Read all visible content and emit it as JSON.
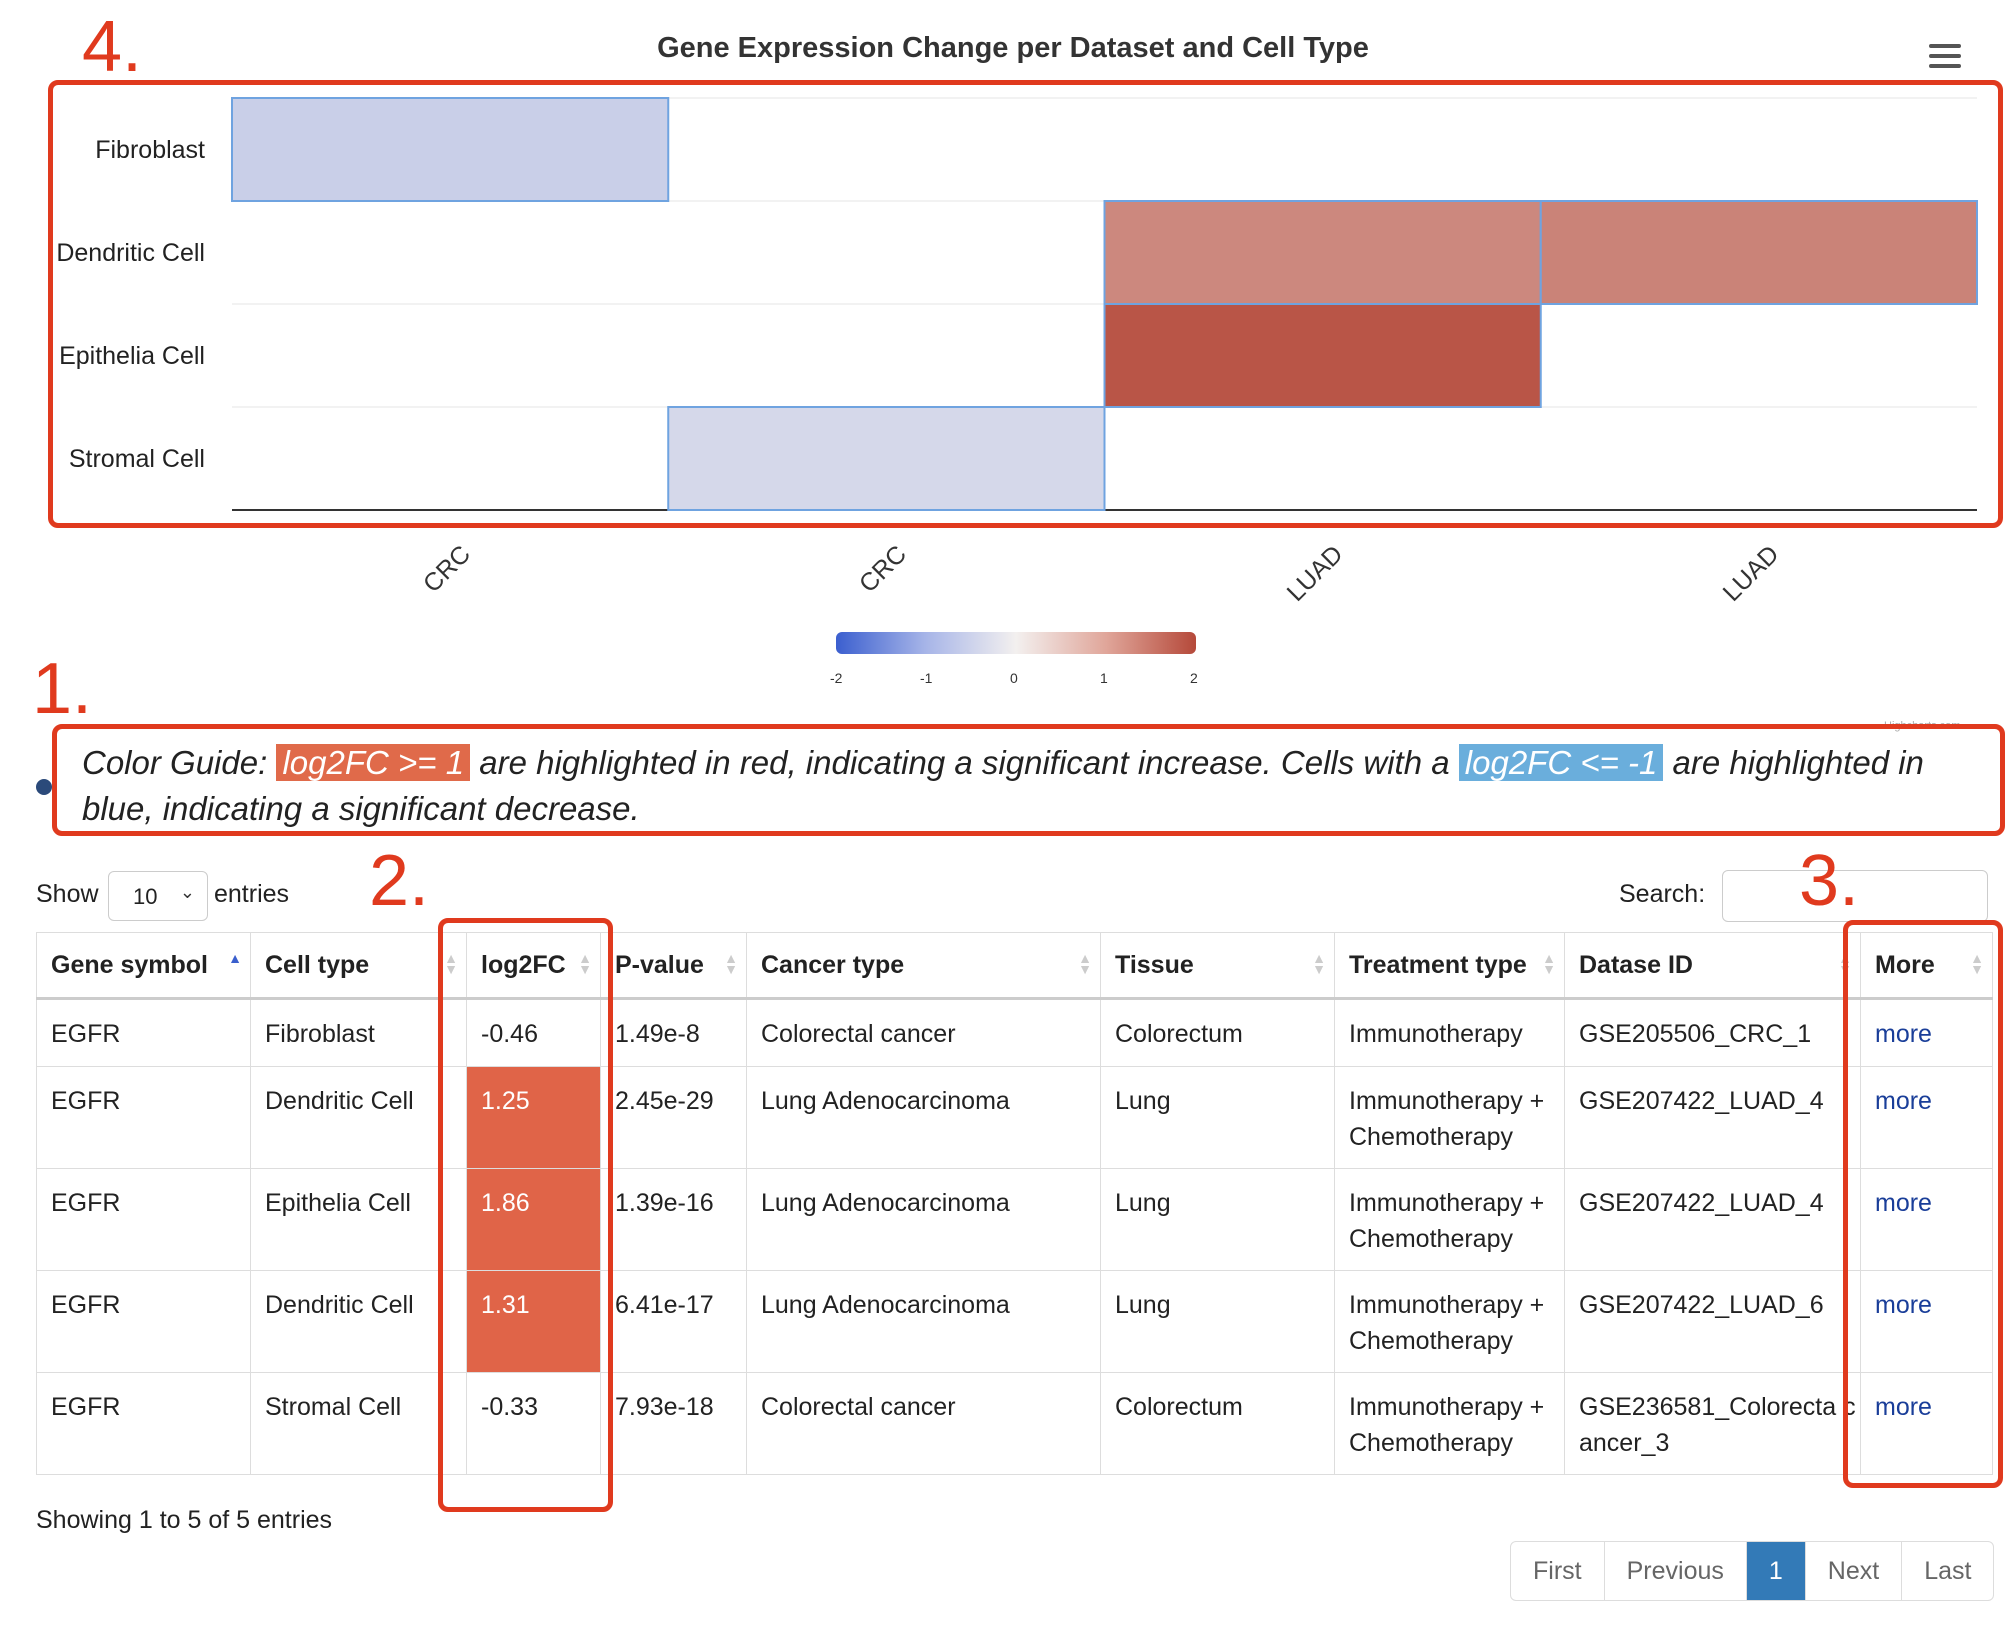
{
  "chart": {
    "title": "Gene Expression Change per Dataset and Cell Type",
    "menu_icon": "hamburger-menu-icon",
    "credit": "Highcharts.com"
  },
  "chart_data": {
    "type": "heatmap",
    "title": "Gene Expression Change per Dataset and Cell Type",
    "x_categories": [
      "CRC",
      "CRC",
      "LUAD",
      "LUAD"
    ],
    "y_categories": [
      "Fibroblast",
      "Dendritic Cell",
      "Epithelia Cell",
      "Stromal Cell"
    ],
    "cells": [
      {
        "x": 0,
        "y": 0,
        "value": -0.46
      },
      {
        "x": 1,
        "y": 3,
        "value": -0.33
      },
      {
        "x": 2,
        "y": 1,
        "value": 1.25
      },
      {
        "x": 2,
        "y": 2,
        "value": 1.86
      },
      {
        "x": 3,
        "y": 1,
        "value": 1.31
      }
    ],
    "color_axis": {
      "min": -2,
      "max": 2,
      "ticks": [
        "-2",
        "-1",
        "0",
        "1",
        "2"
      ],
      "min_color": "#3b5fcf",
      "mid_color": "#f3f0ef",
      "max_color": "#b5493a"
    },
    "legend_placement": "bottom-center"
  },
  "annotations": {
    "box1": "1.",
    "box2": "2.",
    "box3": "3.",
    "box4": "4.",
    "color": "#e03a1e"
  },
  "guide": {
    "prefix": "Color Guide: ",
    "red_label": "log2FC >= 1",
    "middle": " are highlighted in red, indicating a significant increase. Cells with a ",
    "blue_label": "log2FC <= -1",
    "suffix": " are highlighted in blue, indicating a significant decrease."
  },
  "controls": {
    "show_label": "Show",
    "entries_value": "10",
    "entries_label": "entries",
    "search_label": "Search:",
    "search_value": ""
  },
  "table": {
    "headers": [
      "Gene symbol",
      "Cell type",
      "log2FC",
      "P-value",
      "Cancer type",
      "Tissue",
      "Treatment type",
      "Datase ID",
      "More"
    ],
    "rows": [
      [
        "EGFR",
        "Fibroblast",
        "-0.46",
        "1.49e-8",
        "Colorectal cancer",
        "Colorectum",
        "Immunotherapy",
        "GSE205506_CRC_1",
        "more"
      ],
      [
        "EGFR",
        "Dendritic Cell",
        "1.25",
        "2.45e-29",
        "Lung Adenocarcinoma",
        "Lung",
        "Immunotherapy + Chemotherapy",
        "GSE207422_LUAD_4",
        "more"
      ],
      [
        "EGFR",
        "Epithelia Cell",
        "1.86",
        "1.39e-16",
        "Lung Adenocarcinoma",
        "Lung",
        "Immunotherapy + Chemotherapy",
        "GSE207422_LUAD_4",
        "more"
      ],
      [
        "EGFR",
        "Dendritic Cell",
        "1.31",
        "6.41e-17",
        "Lung Adenocarcinoma",
        "Lung",
        "Immunotherapy + Chemotherapy",
        "GSE207422_LUAD_6",
        "more"
      ],
      [
        "EGFR",
        "Stromal Cell",
        "-0.33",
        "7.93e-18",
        "Colorectal cancer",
        "Colorectum",
        "Immunotherapy + Chemotherapy",
        "GSE236581_Colorecta cancer_3",
        "more"
      ]
    ],
    "highlight_color": "#e06448"
  },
  "footer": {
    "showing": "Showing 1 to 5 of 5 entries"
  },
  "pagination": {
    "first": "First",
    "previous": "Previous",
    "current": "1",
    "next": "Next",
    "last": "Last"
  }
}
